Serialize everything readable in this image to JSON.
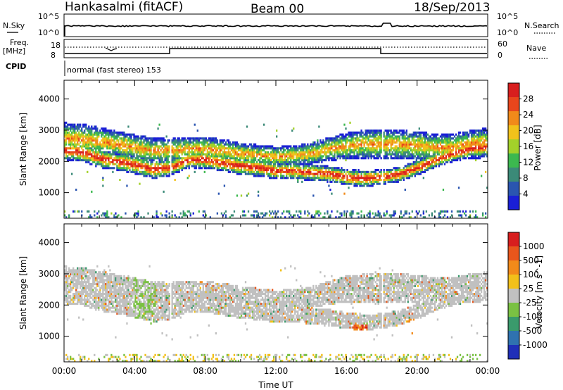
{
  "header": {
    "station": "Hankasalmi (fitACF)",
    "beam": "Beam 00",
    "date": "18/Sep/2013"
  },
  "top_panels": {
    "nsky_label": "N.Sky",
    "nsky_ticks": [
      "10^5",
      "10^0"
    ],
    "nsearch_label": "N.Search",
    "nsearch_ticks": [
      "10^5",
      "10^0"
    ],
    "freq_label": "Freq.",
    "freq_unit": "[MHz]",
    "freq_ticks": [
      "18",
      "8"
    ],
    "nave_label": "Nave",
    "nave_ticks": [
      "60",
      "0"
    ],
    "cpid_label": "CPID",
    "cpid_text": "normal (fast stereo) 153"
  },
  "chart_data": [
    {
      "type": "heatmap",
      "name": "power-panel",
      "x_ticks": [
        "00:00",
        "04:00",
        "08:00",
        "12:00",
        "16:00",
        "20:00",
        "00:00"
      ],
      "xlim_hours": [
        0,
        24
      ],
      "ylabel": "Slant Range [km]",
      "y_ticks": [
        1000,
        2000,
        3000,
        4000
      ],
      "ylim": [
        180,
        4600
      ],
      "colorbar": {
        "label": "Power [dB]",
        "ticks": [
          4,
          8,
          12,
          16,
          20,
          24,
          28
        ],
        "range": [
          0,
          32
        ],
        "colors": [
          "#1a1fd6",
          "#2a55b0",
          "#3b8a78",
          "#3cb84f",
          "#a3d12a",
          "#f1c21b",
          "#f18a1a",
          "#e8461c",
          "#d81e1e"
        ]
      },
      "bands": [
        {
          "name": "main-layer-upper",
          "t": [
            0,
            1,
            2,
            3,
            4,
            5,
            6,
            7,
            8,
            9,
            10,
            11,
            12,
            13,
            14,
            15,
            16,
            17,
            18,
            19,
            20,
            21,
            22,
            23,
            24
          ],
          "center": [
            2750,
            2700,
            2650,
            2550,
            2450,
            2350,
            2350,
            2400,
            2400,
            2350,
            2250,
            2200,
            2150,
            2200,
            2250,
            2400,
            2500,
            2550,
            2550,
            2550,
            2500,
            2450,
            2450,
            2550,
            2600
          ],
          "width": [
            500,
            500,
            450,
            420,
            420,
            400,
            380,
            380,
            380,
            360,
            340,
            340,
            320,
            320,
            340,
            380,
            420,
            460,
            480,
            480,
            460,
            450,
            450,
            460,
            480
          ]
        },
        {
          "name": "main-layer-lower",
          "t": [
            0,
            1,
            2,
            3,
            4,
            5,
            6,
            7,
            8,
            9,
            10,
            11,
            12,
            13,
            14,
            15,
            16,
            17,
            18,
            19,
            20,
            21,
            22,
            23,
            24
          ],
          "center": [
            2350,
            2300,
            2100,
            2000,
            1900,
            1750,
            1800,
            2050,
            2050,
            1950,
            1850,
            1800,
            1700,
            1700,
            1650,
            1600,
            1500,
            1450,
            1500,
            1600,
            1800,
            2050,
            2250,
            2400,
            2450
          ],
          "width": [
            300,
            300,
            300,
            280,
            300,
            300,
            260,
            260,
            280,
            280,
            280,
            280,
            260,
            260,
            260,
            260,
            260,
            260,
            240,
            240,
            240,
            240,
            260,
            260,
            260
          ]
        }
      ]
    },
    {
      "type": "heatmap",
      "name": "velocity-panel",
      "x_ticks": [
        "00:00",
        "04:00",
        "08:00",
        "12:00",
        "16:00",
        "20:00",
        "00:00"
      ],
      "xlabel": "Time UT",
      "xlim_hours": [
        0,
        24
      ],
      "ylabel": "Slant Range [km]",
      "y_ticks": [
        1000,
        2000,
        3000,
        4000
      ],
      "ylim": [
        180,
        4600
      ],
      "colorbar": {
        "label": "Velocity [m s^-1]",
        "ticks": [
          1000,
          500,
          100,
          25,
          -25,
          -100,
          -500,
          -1000
        ],
        "colors": [
          "#1f2fb8",
          "#2f72b0",
          "#3a9a6c",
          "#7ac143",
          "#c0c0c0",
          "#f2c01a",
          "#f28a1a",
          "#e8561c",
          "#d81e1e"
        ]
      }
    }
  ]
}
